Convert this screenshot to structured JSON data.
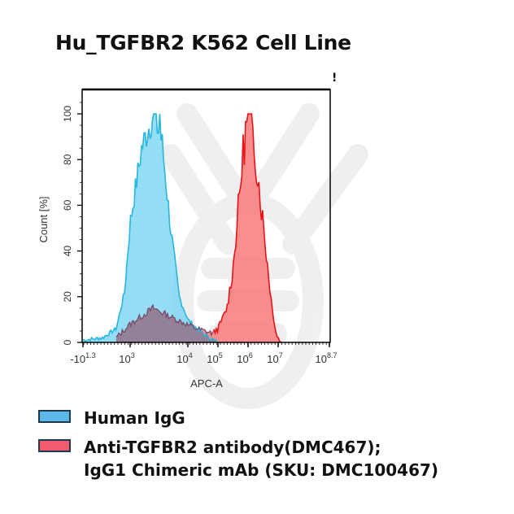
{
  "title": "Hu_TGFBR2 K562 Cell Line",
  "corner_mark": "!",
  "colors": {
    "human_igg_fill": "#6fd3f0",
    "human_igg_line": "#29b6dd",
    "anti_tgfbr2_fill": "#f77a7a",
    "anti_tgfbr2_line": "#e8141a",
    "overlap_fill": "#8a7f9a",
    "legend_blue": "#5bb8e8",
    "legend_red": "#f25a6e"
  },
  "legend": {
    "items": [
      {
        "label": "Human IgG",
        "color": "#5bb8e8"
      },
      {
        "label": "Anti-TGFBR2 antibody(DMC467);\nIgG1 Chimeric mAb (SKU: DMC100467)",
        "color": "#f25a6e"
      }
    ]
  },
  "chart_data": {
    "type": "area",
    "title": "Hu_TGFBR2 K562 Cell Line",
    "xlabel": "APC-A",
    "ylabel": "Count [%]",
    "x_scale": "biexponential/log",
    "x_tick_labels": [
      "-10^1.3",
      "10^3",
      "10^4",
      "10^5",
      "10^6",
      "10^7",
      "10^8.7"
    ],
    "y_tick_labels": [
      "0",
      "20",
      "40",
      "60",
      "80",
      "100"
    ],
    "ylim": [
      0,
      100
    ],
    "grid": false,
    "legend_position": "bottom",
    "series": [
      {
        "name": "Human IgG",
        "peak_x": "~10^3.4",
        "peak_y": 100,
        "x_log": [
          1.3,
          2.0,
          2.5,
          2.8,
          3.0,
          3.2,
          3.4,
          3.55,
          3.7,
          3.85,
          4.0,
          4.3,
          4.6,
          5.0
        ],
        "y": [
          1,
          2,
          6,
          22,
          52,
          85,
          100,
          88,
          50,
          20,
          10,
          6,
          3,
          0
        ]
      },
      {
        "name": "Anti-TGFBR2 antibody(DMC467); IgG1 Chimeric mAb (SKU: DMC100467)",
        "peak_x": "~10^6",
        "peak_y": 100,
        "x_log": [
          2.5,
          3.0,
          3.4,
          3.8,
          4.3,
          4.8,
          5.0,
          5.3,
          5.5,
          5.7,
          5.85,
          6.0,
          6.2,
          6.4,
          6.6,
          6.8,
          6.95,
          7.1
        ],
        "y": [
          2,
          8,
          15,
          10,
          6,
          4,
          6,
          15,
          32,
          62,
          85,
          100,
          88,
          65,
          40,
          15,
          3,
          0
        ]
      }
    ]
  }
}
